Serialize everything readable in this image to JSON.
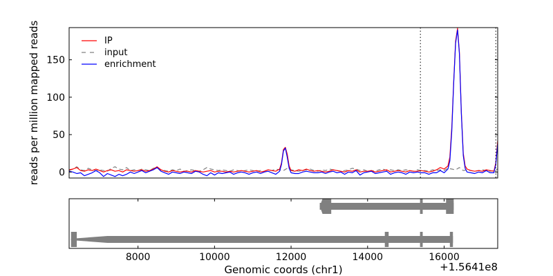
{
  "chart_data": [
    {
      "type": "line",
      "panel": "signal",
      "ylabel": "reads per million mapped reads",
      "xlim": [
        6200,
        17400
      ],
      "ylim": [
        -8,
        193
      ],
      "yticks": [
        0,
        50,
        100,
        150
      ],
      "grid": false,
      "legend_placement": "top-left",
      "vertical_markers": [
        15380,
        17350
      ],
      "colors": {
        "IP": "#ff0000",
        "input": "#808080",
        "enrichment": "#0000ff"
      },
      "series": [
        {
          "name": "IP",
          "style": "solid",
          "x": [
            6200,
            6300,
            6400,
            6500,
            6600,
            6700,
            6800,
            6900,
            7000,
            7100,
            7200,
            7300,
            7400,
            7500,
            7600,
            7700,
            7800,
            7900,
            8000,
            8100,
            8200,
            8300,
            8400,
            8500,
            8600,
            8700,
            8800,
            8900,
            9000,
            9100,
            9200,
            9300,
            9400,
            9500,
            9600,
            9700,
            9800,
            9900,
            10000,
            10100,
            10200,
            10300,
            10400,
            10500,
            10600,
            10700,
            10800,
            10900,
            11000,
            11100,
            11200,
            11300,
            11400,
            11500,
            11600,
            11700,
            11750,
            11800,
            11850,
            11900,
            11950,
            12000,
            12100,
            12200,
            12300,
            12400,
            12500,
            12600,
            12700,
            12800,
            12900,
            13000,
            13100,
            13200,
            13300,
            13400,
            13500,
            13600,
            13700,
            13800,
            13900,
            14000,
            14100,
            14200,
            14300,
            14400,
            14500,
            14600,
            14700,
            14800,
            14900,
            15000,
            15100,
            15200,
            15300,
            15400,
            15500,
            15600,
            15700,
            15800,
            15900,
            16000,
            16100,
            16150,
            16200,
            16250,
            16300,
            16350,
            16400,
            16450,
            16500,
            16550,
            16600,
            16700,
            16800,
            16900,
            17000,
            17100,
            17200,
            17300,
            17350,
            17400
          ],
          "y": [
            3,
            4,
            6,
            2,
            1,
            3,
            2,
            4,
            2,
            0,
            2,
            3,
            1,
            2,
            0,
            3,
            2,
            1,
            2,
            3,
            1,
            2,
            4,
            7,
            3,
            1,
            0,
            2,
            1,
            0,
            1,
            1,
            0,
            2,
            1,
            0,
            1,
            2,
            0,
            1,
            1,
            0,
            1,
            0,
            1,
            2,
            1,
            0,
            1,
            2,
            0,
            1,
            3,
            2,
            1,
            4,
            12,
            30,
            33,
            24,
            8,
            2,
            1,
            3,
            2,
            4,
            2,
            1,
            2,
            1,
            0,
            1,
            3,
            2,
            1,
            0,
            2,
            1,
            3,
            0,
            1,
            1,
            2,
            0,
            1,
            2,
            3,
            0,
            1,
            2,
            1,
            0,
            2,
            1,
            1,
            2,
            1,
            0,
            1,
            3,
            6,
            4,
            8,
            20,
            60,
            120,
            175,
            192,
            160,
            80,
            25,
            8,
            4,
            2,
            1,
            2,
            1,
            3,
            2,
            1,
            12,
            42
          ]
        },
        {
          "name": "input",
          "style": "dashed",
          "x": [
            6200,
            6300,
            6400,
            6500,
            6600,
            6700,
            6800,
            6900,
            7000,
            7100,
            7200,
            7300,
            7400,
            7500,
            7600,
            7700,
            7800,
            7900,
            8000,
            8100,
            8200,
            8300,
            8400,
            8500,
            8600,
            8700,
            8800,
            8900,
            9000,
            9100,
            9200,
            9300,
            9400,
            9500,
            9600,
            9700,
            9800,
            9900,
            10000,
            10100,
            10200,
            10300,
            10400,
            10500,
            10600,
            10700,
            10800,
            10900,
            11000,
            11100,
            11200,
            11300,
            11400,
            11500,
            11600,
            11700,
            11800,
            11900,
            12000,
            12100,
            12200,
            12300,
            12400,
            12500,
            12600,
            12700,
            12800,
            12900,
            13000,
            13100,
            13200,
            13300,
            13400,
            13500,
            13600,
            13700,
            13800,
            13900,
            14000,
            14100,
            14200,
            14300,
            14400,
            14500,
            14600,
            14700,
            14800,
            14900,
            15000,
            15100,
            15200,
            15300,
            15400,
            15500,
            15600,
            15700,
            15800,
            15900,
            16000,
            16100,
            16200,
            16300,
            16400,
            16500,
            16600,
            16700,
            16800,
            16900,
            17000,
            17100,
            17200,
            17300,
            17400
          ],
          "y": [
            2,
            4,
            7,
            3,
            2,
            5,
            3,
            2,
            3,
            2,
            1,
            5,
            7,
            4,
            3,
            6,
            2,
            3,
            2,
            4,
            3,
            2,
            5,
            6,
            3,
            2,
            1,
            3,
            2,
            4,
            1,
            2,
            3,
            2,
            1,
            3,
            6,
            4,
            3,
            2,
            3,
            2,
            1,
            3,
            2,
            1,
            2,
            3,
            2,
            1,
            2,
            1,
            3,
            2,
            4,
            3,
            2,
            5,
            3,
            2,
            1,
            2,
            3,
            4,
            2,
            1,
            3,
            2,
            4,
            3,
            2,
            1,
            2,
            3,
            5,
            4,
            2,
            3,
            1,
            2,
            1,
            3,
            4,
            2,
            3,
            2,
            3,
            2,
            3,
            2,
            1,
            3,
            2,
            2,
            1,
            3,
            2,
            3,
            2,
            5,
            4,
            3,
            6,
            2,
            3,
            2,
            1,
            2,
            3,
            2,
            1,
            2,
            4
          ]
        },
        {
          "name": "enrichment",
          "style": "solid",
          "x": [
            6200,
            6300,
            6400,
            6500,
            6600,
            6700,
            6800,
            6900,
            7000,
            7100,
            7200,
            7300,
            7400,
            7500,
            7600,
            7700,
            7800,
            7900,
            8000,
            8100,
            8200,
            8300,
            8400,
            8500,
            8600,
            8700,
            8800,
            8900,
            9000,
            9100,
            9200,
            9300,
            9400,
            9500,
            9600,
            9700,
            9800,
            9900,
            10000,
            10100,
            10200,
            10300,
            10400,
            10500,
            10600,
            10700,
            10800,
            10900,
            11000,
            11100,
            11200,
            11300,
            11400,
            11500,
            11600,
            11700,
            11750,
            11800,
            11850,
            11900,
            11950,
            12000,
            12100,
            12200,
            12300,
            12400,
            12500,
            12600,
            12700,
            12800,
            12900,
            13000,
            13100,
            13200,
            13300,
            13400,
            13500,
            13600,
            13700,
            13800,
            13900,
            14000,
            14100,
            14200,
            14300,
            14400,
            14500,
            14600,
            14700,
            14800,
            14900,
            15000,
            15100,
            15200,
            15300,
            15400,
            15500,
            15600,
            15700,
            15800,
            15900,
            16000,
            16100,
            16150,
            16200,
            16250,
            16300,
            16350,
            16400,
            16450,
            16500,
            16550,
            16600,
            16700,
            16800,
            16900,
            17000,
            17100,
            17200,
            17300,
            17350,
            17400
          ],
          "y": [
            1,
            0,
            -2,
            -1,
            -5,
            -3,
            -1,
            2,
            -1,
            -6,
            -2,
            -4,
            -6,
            -3,
            -5,
            -3,
            0,
            -2,
            0,
            2,
            -1,
            1,
            3,
            6,
            1,
            -1,
            -3,
            0,
            -1,
            -2,
            0,
            -1,
            -2,
            1,
            0,
            -3,
            -5,
            -1,
            -4,
            -1,
            -2,
            -1,
            0,
            -3,
            -1,
            0,
            -1,
            -3,
            -1,
            0,
            -2,
            0,
            1,
            -1,
            -3,
            1,
            10,
            28,
            32,
            20,
            5,
            -1,
            -2,
            -2,
            0,
            1,
            0,
            -1,
            -1,
            0,
            -2,
            0,
            1,
            -1,
            0,
            -3,
            0,
            -1,
            2,
            -4,
            -1,
            0,
            1,
            -2,
            -1,
            0,
            1,
            -3,
            -1,
            0,
            -1,
            -3,
            0,
            -1,
            0,
            -1,
            -1,
            -3,
            -1,
            -1,
            2,
            -1,
            4,
            15,
            55,
            118,
            172,
            190,
            158,
            78,
            22,
            5,
            0,
            -1,
            -2,
            0,
            -1,
            2,
            -1,
            -1,
            10,
            38
          ]
        }
      ]
    },
    {
      "type": "gene_track",
      "panel": "annotation",
      "xlabel": "Genomic coords (chr1)",
      "offset_label": "+1.5641e8",
      "xticks": [
        8000,
        10000,
        12000,
        14000,
        16000
      ],
      "xtick_labels": [
        "8000",
        "10000",
        "12000",
        "14000",
        "16000"
      ],
      "xlim": [
        6200,
        17400
      ],
      "color": "#808080",
      "transcripts": [
        {
          "start": 12750,
          "end": 16250,
          "exons": [
            [
              12750,
              13050
            ],
            [
              15370,
              15440
            ],
            [
              16050,
              16250
            ]
          ]
        },
        {
          "start": 6250,
          "end": 16230,
          "exons": [
            [
              6250,
              6400
            ],
            [
              14450,
              14550
            ],
            [
              15370,
              15440
            ],
            [
              16150,
              16230
            ]
          ]
        }
      ]
    }
  ]
}
